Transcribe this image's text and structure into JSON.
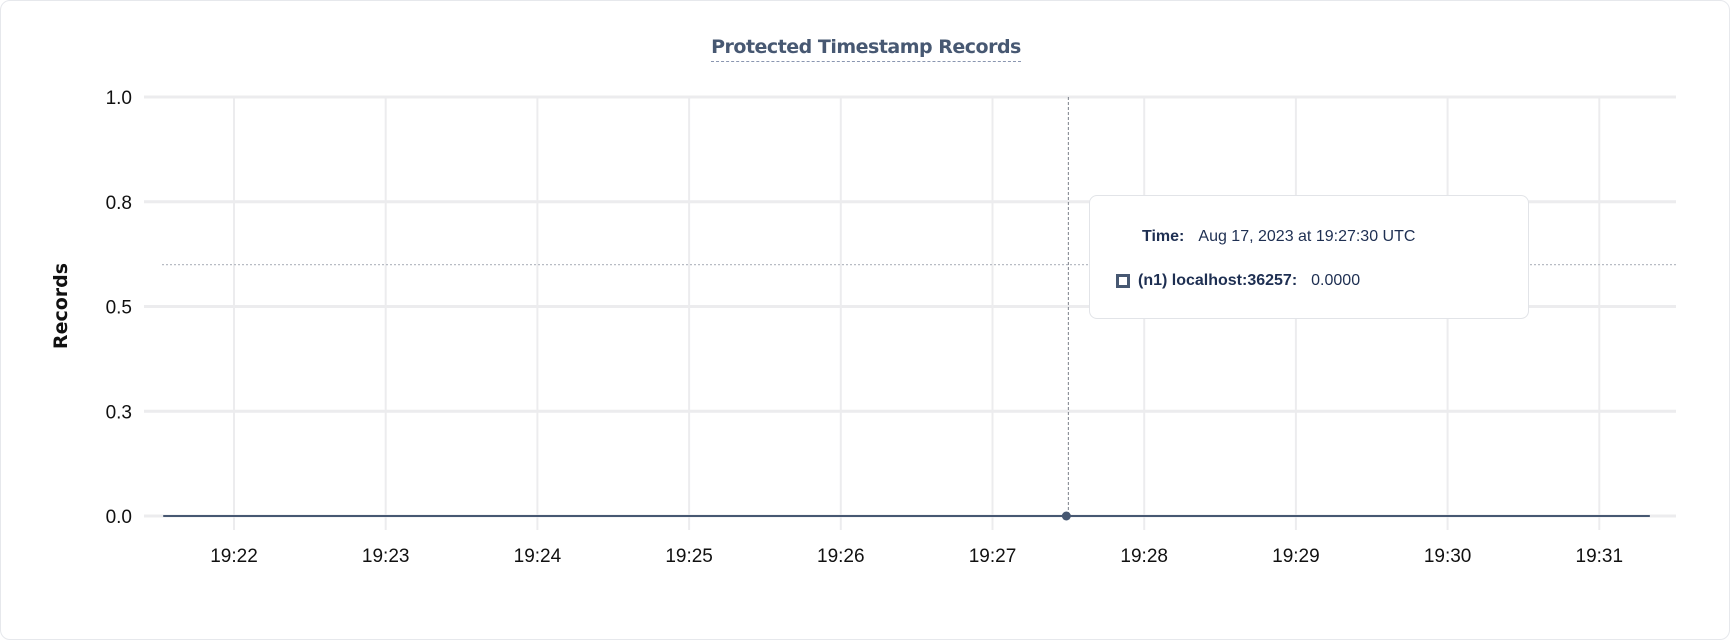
{
  "chart_data": {
    "type": "line",
    "title": "Protected Timestamp Records",
    "ylabel": "Records",
    "xlabel": "",
    "ylim": [
      0,
      1.0
    ],
    "y_ticks": [
      0,
      0.25,
      0.5,
      0.75,
      1.0
    ],
    "y_tick_labels": [
      "0.0",
      "0.3",
      "0.5",
      "0.8",
      "1.0"
    ],
    "x_ticks": [
      "19:22",
      "19:23",
      "19:24",
      "19:25",
      "19:26",
      "19:27",
      "19:28",
      "19:29",
      "19:30",
      "19:31"
    ],
    "xlim": [
      "19:21:30",
      "19:31:30"
    ],
    "grid": true,
    "series": [
      {
        "name": "(n1) localhost:36257",
        "color": "#475872",
        "x": [
          "19:21:32",
          "19:27:30",
          "19:31:20"
        ],
        "y": [
          0,
          0,
          0
        ]
      }
    ],
    "hover_marker": {
      "x": "19:27:30",
      "y": 0
    },
    "reference_line_y": 0.6
  },
  "tooltip": {
    "time_label": "Time:",
    "time_value": "Aug 17, 2023 at 19:27:30 UTC",
    "series_label": "(n1) localhost:36257:",
    "series_value": "0.0000"
  }
}
